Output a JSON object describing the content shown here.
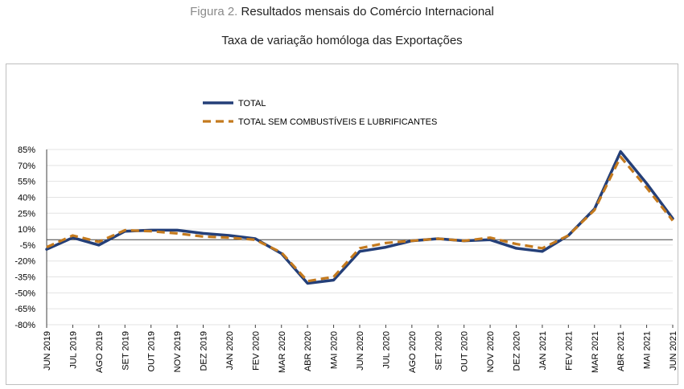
{
  "figure": {
    "label": "Figura 2.",
    "title": "Resultados mensais do Comércio Internacional",
    "subtitle": "Taxa de variação homóloga das Exportações"
  },
  "chart_data": {
    "type": "line",
    "title": "Taxa de variação homóloga das Exportações",
    "xlabel": "",
    "ylabel": "",
    "ylim": [
      -80,
      85
    ],
    "yticks": [
      "85%",
      "70%",
      "55%",
      "40%",
      "25%",
      "10%",
      "-5%",
      "-20%",
      "-35%",
      "-50%",
      "-65%",
      "-80%"
    ],
    "grid": true,
    "legend_position": "top",
    "categories": [
      "JUN 2019",
      "JUL 2019",
      "AGO 2019",
      "SET 2019",
      "OUT 2019",
      "NOV 2019",
      "DEZ 2019",
      "JAN 2020",
      "FEV 2020",
      "MAR 2020",
      "ABR 2020",
      "MAI 2020",
      "JUN 2020",
      "JUL 2020",
      "AGO 2020",
      "SET 2020",
      "OUT 2020",
      "NOV 2020",
      "DEZ 2020",
      "JAN 2021",
      "FEV 2021",
      "MAR 2021",
      "ABR 2021",
      "MAI 2021",
      "JUN 2021"
    ],
    "series": [
      {
        "name": "TOTAL",
        "color": "#243F78",
        "style": "solid",
        "values": [
          -9,
          2,
          -5,
          8,
          9,
          9,
          6,
          4,
          1,
          -13,
          -41,
          -38,
          -11,
          -7,
          -1,
          1,
          -1,
          0,
          -8,
          -11,
          4,
          29,
          83,
          53,
          20
        ]
      },
      {
        "name": "TOTAL SEM COMBUSTÍVEIS  E LUBRIFICANTES",
        "color": "#C47A1E",
        "style": "dashed",
        "values": [
          -7,
          4,
          -2,
          9,
          8,
          6,
          3,
          2,
          0,
          -12,
          -39,
          -35,
          -8,
          -3,
          -1,
          1,
          -1,
          2,
          -4,
          -8,
          4,
          28,
          78,
          49,
          18
        ]
      }
    ]
  }
}
